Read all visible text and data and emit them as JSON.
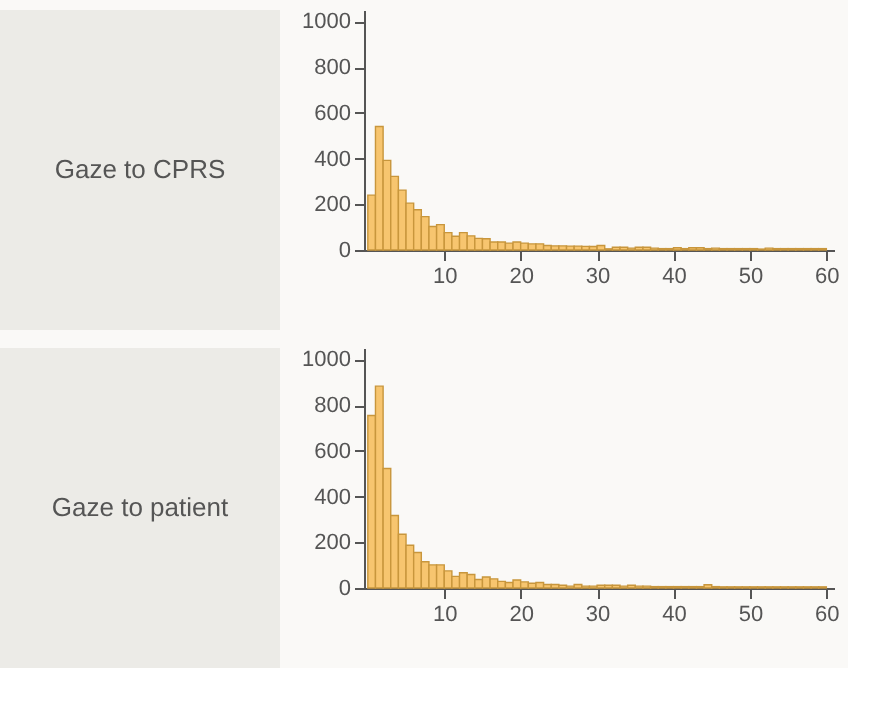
{
  "chart_data": [
    {
      "type": "histogram",
      "title": "Gaze to CPRS",
      "bins": [
        0,
        1,
        2,
        3,
        4,
        5,
        6,
        7,
        8,
        9,
        10,
        11,
        12,
        13,
        14,
        15,
        16,
        17,
        18,
        19,
        20,
        21,
        22,
        23,
        24,
        25,
        26,
        27,
        28,
        29,
        30,
        31,
        32,
        33,
        34,
        35,
        36,
        37,
        38,
        39,
        40,
        41,
        42,
        43,
        44,
        45,
        46,
        47,
        48,
        49,
        50,
        51,
        52,
        53,
        54,
        55,
        56,
        57,
        58,
        59,
        60
      ],
      "values": [
        240,
        540,
        392,
        322,
        262,
        205,
        176,
        146,
        103,
        111,
        76,
        60,
        76,
        62,
        51,
        49,
        35,
        35,
        30,
        35,
        30,
        27,
        27,
        20,
        18,
        18,
        17,
        17,
        16,
        15,
        20,
        5,
        12,
        12,
        8,
        12,
        12,
        8,
        6,
        6,
        10,
        6,
        10,
        10,
        6,
        8,
        6,
        6,
        6,
        6,
        6,
        4,
        8,
        6,
        6,
        6,
        6,
        6,
        6,
        6
      ],
      "color": "#f7c56f",
      "xlim": [
        -0.5,
        61
      ],
      "ylim": [
        0,
        1050
      ],
      "xticks": [
        10,
        20,
        30,
        40,
        50,
        60
      ],
      "yticks": [
        0,
        200,
        400,
        600,
        800,
        1000
      ],
      "grid": false
    },
    {
      "type": "histogram",
      "title": "Gaze to patient",
      "bins": [
        0,
        1,
        2,
        3,
        4,
        5,
        6,
        7,
        8,
        9,
        10,
        11,
        12,
        13,
        14,
        15,
        16,
        17,
        18,
        19,
        20,
        21,
        22,
        23,
        24,
        25,
        26,
        27,
        28,
        29,
        30,
        31,
        32,
        33,
        34,
        35,
        36,
        37,
        38,
        39,
        40,
        41,
        42,
        43,
        44,
        45,
        46,
        47,
        48,
        49,
        50,
        51,
        52,
        53,
        54,
        55,
        56,
        57,
        58,
        59,
        60
      ],
      "values": [
        755,
        883,
        523,
        317,
        235,
        187,
        155,
        115,
        101,
        101,
        75,
        51,
        67,
        59,
        37,
        48,
        40,
        29,
        24,
        35,
        27,
        21,
        24,
        15,
        15,
        12,
        8,
        15,
        8,
        8,
        12,
        12,
        12,
        8,
        12,
        8,
        8,
        6,
        6,
        6,
        6,
        6,
        6,
        6,
        14,
        6,
        5,
        5,
        5,
        5,
        5,
        5,
        5,
        5,
        5,
        5,
        5,
        5,
        5,
        5
      ],
      "color": "#f7c56f",
      "xlim": [
        -0.5,
        61
      ],
      "ylim": [
        0,
        1050
      ],
      "xticks": [
        10,
        20,
        30,
        40,
        50,
        60
      ],
      "yticks": [
        0,
        200,
        400,
        600,
        800,
        1000
      ],
      "grid": false
    }
  ]
}
